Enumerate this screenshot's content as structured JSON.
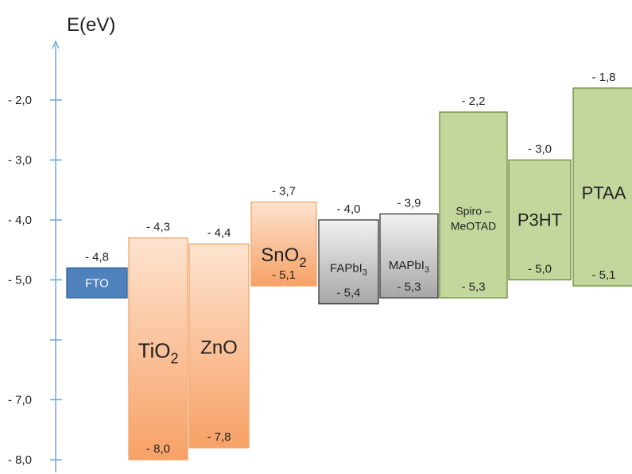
{
  "axis": {
    "title": "E(eV)",
    "ticks": [
      {
        "value": -2.0,
        "label": "- 2,0"
      },
      {
        "value": -3.0,
        "label": "- 3,0"
      },
      {
        "value": -4.0,
        "label": "- 4,0"
      },
      {
        "value": -5.0,
        "label": "- 5,0"
      },
      {
        "value": -6.0,
        "label": ""
      },
      {
        "value": -7.0,
        "label": "- 7,0"
      },
      {
        "value": -8.0,
        "label": "- 8,0"
      }
    ]
  },
  "materials": [
    {
      "id": "fto",
      "name": "FTO",
      "sub": "",
      "top": -4.8,
      "bottom": -5.3,
      "top_label": "- 4,8",
      "bottom_label": "",
      "group": "electrode"
    },
    {
      "id": "tio2",
      "name": "TiO",
      "sub": "2",
      "top": -4.3,
      "bottom": -8.0,
      "top_label": "- 4,3",
      "bottom_label": "- 8,0",
      "group": "etl"
    },
    {
      "id": "zno",
      "name": "ZnO",
      "sub": "",
      "top": -4.4,
      "bottom": -7.8,
      "top_label": "- 4,4",
      "bottom_label": "- 7,8",
      "group": "etl"
    },
    {
      "id": "sno2",
      "name": "SnO",
      "sub": "2",
      "top": -3.7,
      "bottom": -5.1,
      "top_label": "- 3,7",
      "bottom_label": "- 5,1",
      "group": "etl"
    },
    {
      "id": "fapbi3",
      "name": "FAPbI",
      "sub": "3",
      "top": -4.0,
      "bottom": -5.4,
      "top_label": "- 4,0",
      "bottom_label": "- 5,4",
      "group": "perovskite"
    },
    {
      "id": "mapbi3",
      "name": "MAPbI",
      "sub": "3",
      "top": -3.9,
      "bottom": -5.3,
      "top_label": "- 3,9",
      "bottom_label": "- 5,3",
      "group": "perovskite"
    },
    {
      "id": "spiro",
      "name": "Spiro –",
      "name2": "MeOTAD",
      "sub": "",
      "top": -2.2,
      "bottom": -5.3,
      "top_label": "- 2,2",
      "bottom_label": "- 5,3",
      "group": "htl"
    },
    {
      "id": "p3ht",
      "name": "P3HT",
      "sub": "",
      "top": -3.0,
      "bottom": -5.0,
      "top_label": "- 3,0",
      "bottom_label": "- 5,0",
      "group": "htl"
    },
    {
      "id": "ptaa",
      "name": "PTAA",
      "sub": "",
      "top": -1.8,
      "bottom": -5.1,
      "top_label": "- 1,8",
      "bottom_label": "- 5,1",
      "group": "htl"
    }
  ],
  "colors": {
    "axis": "#5b9bd5",
    "electrode_fill": "#4f81bd",
    "electrode_stroke": "#2f5f8f",
    "etl_top": "#fde3cf",
    "etl_bottom": "#f7a166",
    "etl_stroke": "#f4a46a",
    "perovskite_top": "#f2f2f2",
    "perovskite_bottom": "#a6a6a6",
    "perovskite_stroke": "#333333",
    "htl_fill": "#c3d69b",
    "htl_stroke": "#6a8a3a"
  }
}
